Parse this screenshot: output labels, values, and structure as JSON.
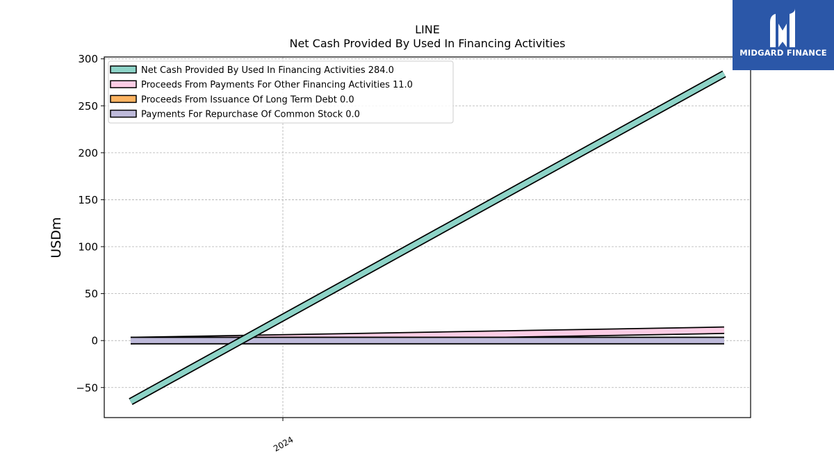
{
  "brand": {
    "name": "MIDGARD FINANCE",
    "bg_color": "#2b57a8"
  },
  "chart_data": {
    "type": "line",
    "title": "LINE",
    "subtitle": "Net Cash Provided By Used In Financing Activities",
    "ylabel": "USDm",
    "xlabel": "",
    "x_tick_labels": [
      "2024"
    ],
    "ylim": [
      -82,
      302
    ],
    "y_ticks": [
      -50,
      0,
      50,
      100,
      150,
      200,
      250,
      300
    ],
    "y_tick_labels": [
      "−50",
      "0",
      "50",
      "100",
      "150",
      "200",
      "250",
      "300"
    ],
    "grid": true,
    "legend_position": "top-left",
    "series": [
      {
        "name": "Net Cash Provided By Used In Financing Activities",
        "legend_value": "284.0",
        "color": "#8dd3c7",
        "values": [
          -65,
          284
        ]
      },
      {
        "name": "Proceeds From Payments For Other Financing Activities",
        "legend_value": "11.0",
        "color": "#fccde5",
        "values": [
          0,
          11
        ]
      },
      {
        "name": "Proceeds From Issuance Of Long Term Debt",
        "legend_value": "0.0",
        "color": "#fdb462",
        "values": [
          0,
          0
        ]
      },
      {
        "name": "Payments For Repurchase Of Common Stock",
        "legend_value": "0.0",
        "color": "#bebada",
        "values": [
          0,
          0
        ]
      }
    ]
  }
}
